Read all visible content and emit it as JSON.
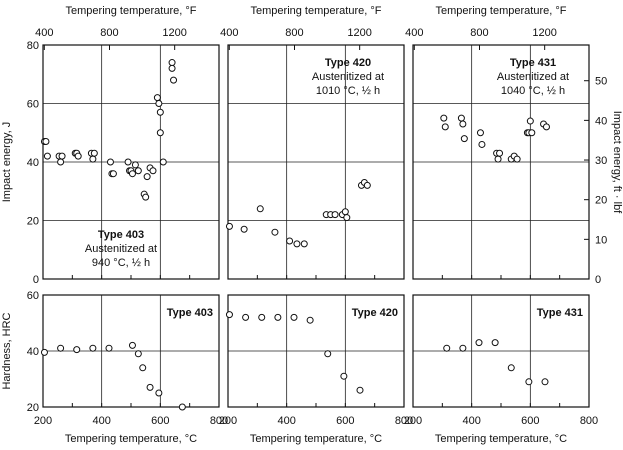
{
  "chart_data": [
    {
      "type": "scatter",
      "panel": "impact-403",
      "top_axis_label": "Tempering temperature, °F",
      "ylabel": "Impact energy, J",
      "xlim": [
        200,
        800
      ],
      "ylim": [
        0,
        80
      ],
      "top_ticks": [
        "400",
        "800",
        "1200"
      ],
      "y_ticks": [
        "0",
        "20",
        "40",
        "60",
        "80"
      ],
      "annotation": {
        "title": "Type 403",
        "lines": [
          "Austenitized at",
          "940 °C, ½ h"
        ]
      },
      "x": [
        205,
        210,
        215,
        255,
        260,
        265,
        310,
        315,
        320,
        365,
        370,
        375,
        430,
        435,
        440,
        490,
        495,
        500,
        505,
        515,
        525,
        545,
        550,
        555,
        565,
        575,
        590,
        595,
        600,
        600,
        610,
        640,
        640,
        645
      ],
      "y": [
        47,
        47,
        42,
        42,
        40,
        42,
        43,
        43,
        42,
        43,
        41,
        43,
        40,
        36,
        36,
        40,
        37,
        37,
        36,
        39,
        37,
        29,
        28,
        35,
        38,
        37,
        62,
        60,
        50,
        57,
        40,
        74,
        72,
        68
      ]
    },
    {
      "type": "scatter",
      "panel": "impact-420",
      "top_axis_label": "Tempering temperature, °F",
      "xlim": [
        200,
        800
      ],
      "ylim": [
        0,
        80
      ],
      "top_ticks": [
        "400",
        "800",
        "1200"
      ],
      "annotation": {
        "title": "Type 420",
        "lines": [
          "Austenitized at",
          "1010 °C, ½ h"
        ]
      },
      "x": [
        205,
        255,
        310,
        360,
        410,
        435,
        460,
        535,
        550,
        565,
        590,
        600,
        605,
        655,
        665,
        675
      ],
      "y": [
        18,
        17,
        24,
        16,
        13,
        12,
        12,
        22,
        22,
        22,
        22,
        23,
        21,
        32,
        33,
        32
      ]
    },
    {
      "type": "scatter",
      "panel": "impact-431",
      "top_axis_label": "Tempering temperature, °F",
      "right_axis_label": "Impact energy, ft · lbf",
      "xlim": [
        200,
        800
      ],
      "ylim": [
        0,
        80
      ],
      "top_ticks": [
        "400",
        "800",
        "1200"
      ],
      "right_ticks": [
        "0",
        "10",
        "20",
        "30",
        "40",
        "50"
      ],
      "annotation": {
        "title": "Type 431",
        "lines": [
          "Austenitized at",
          "1040 °C, ½ h"
        ]
      },
      "x": [
        305,
        310,
        365,
        370,
        375,
        430,
        435,
        485,
        490,
        495,
        535,
        545,
        555,
        590,
        595,
        600,
        605,
        645,
        655
      ],
      "y": [
        55,
        52,
        55,
        53,
        48,
        50,
        46,
        43,
        41,
        43,
        41,
        42,
        41,
        50,
        50,
        54,
        50,
        53,
        52
      ]
    },
    {
      "type": "scatter",
      "panel": "hardness-403",
      "xlabel": "Tempering temperature, °C",
      "ylabel": "Hardness, HRC",
      "xlim": [
        200,
        800
      ],
      "ylim": [
        20,
        60
      ],
      "x_ticks": [
        "200",
        "400",
        "600",
        "800"
      ],
      "y_ticks": [
        "20",
        "40",
        "60"
      ],
      "annotation": {
        "title": "Type 403",
        "lines": []
      },
      "x": [
        205,
        260,
        315,
        370,
        425,
        505,
        525,
        540,
        565,
        595,
        675
      ],
      "y": [
        39.5,
        41,
        40.5,
        41,
        41,
        42,
        39,
        34,
        27,
        25,
        20
      ]
    },
    {
      "type": "scatter",
      "panel": "hardness-420",
      "xlabel": "Tempering temperature, °C",
      "xlim": [
        200,
        800
      ],
      "ylim": [
        20,
        60
      ],
      "x_ticks": [
        "200",
        "400",
        "600",
        "800"
      ],
      "annotation": {
        "title": "Type 420",
        "lines": []
      },
      "x": [
        205,
        260,
        315,
        370,
        425,
        480,
        540,
        595,
        650
      ],
      "y": [
        53,
        52,
        52,
        52,
        52,
        51,
        39,
        31,
        26
      ]
    },
    {
      "type": "scatter",
      "panel": "hardness-431",
      "xlabel": "Tempering temperature, °C",
      "xlim": [
        200,
        800
      ],
      "ylim": [
        20,
        60
      ],
      "x_ticks": [
        "200",
        "400",
        "600",
        "800"
      ],
      "annotation": {
        "title": "Type 431",
        "lines": []
      },
      "x": [
        315,
        370,
        425,
        480,
        535,
        595,
        650
      ],
      "y": [
        41,
        41,
        43,
        43,
        34,
        29,
        29
      ]
    }
  ]
}
